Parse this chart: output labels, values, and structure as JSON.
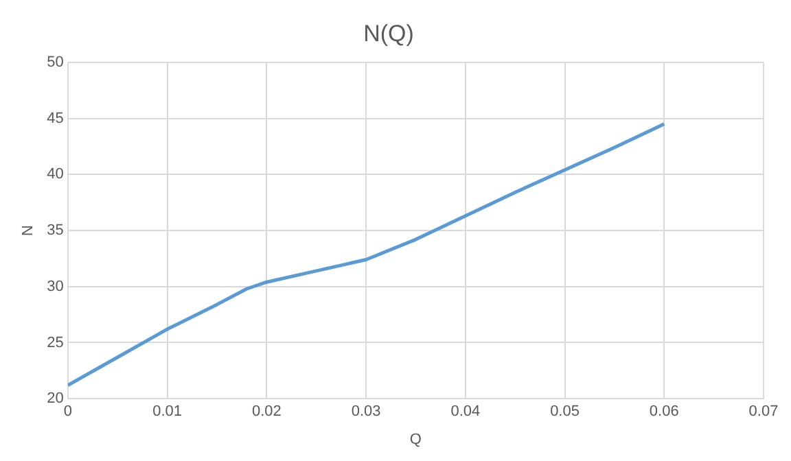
{
  "chart_data": {
    "type": "line",
    "title": "N(Q)",
    "xlabel": "Q",
    "ylabel": "N",
    "x": [
      0,
      0.005,
      0.01,
      0.015,
      0.018,
      0.02,
      0.025,
      0.03,
      0.035,
      0.04,
      0.045,
      0.05,
      0.055,
      0.06
    ],
    "series": [
      {
        "color": "#5b9bd5",
        "values": [
          21.2,
          23.7,
          26.2,
          28.4,
          29.8,
          30.4,
          31.4,
          32.4,
          34.2,
          36.3,
          38.4,
          40.4,
          42.4,
          44.5
        ]
      }
    ],
    "xlim": [
      0,
      0.07
    ],
    "xticks": [
      0,
      0.01,
      0.02,
      0.03,
      0.04,
      0.05,
      0.06,
      0.07
    ],
    "ylim": [
      20,
      50
    ],
    "yticks": [
      20,
      25,
      30,
      35,
      40,
      45,
      50
    ],
    "grid": true,
    "legend": false,
    "marker": "none",
    "line_style": "solid"
  }
}
